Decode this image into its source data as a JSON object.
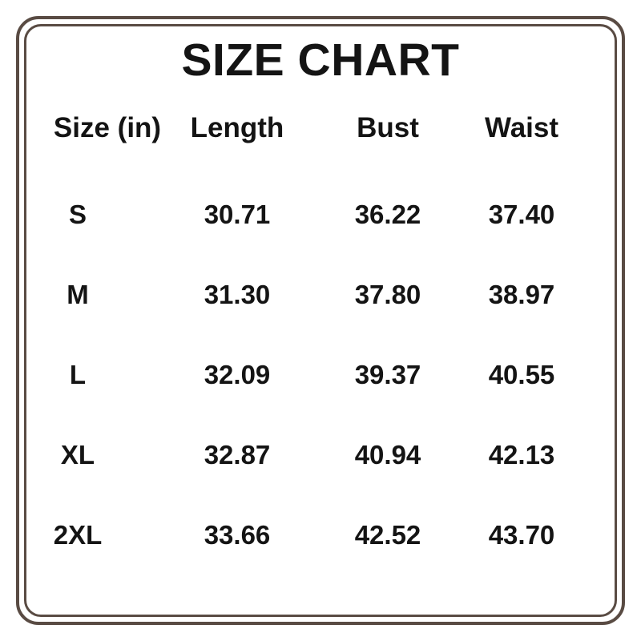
{
  "page": {
    "title": "SIZE CHART"
  },
  "colors": {
    "frame_brown": "#594b43",
    "text": "#141414",
    "background": "#ffffff"
  },
  "chart_data": {
    "type": "table",
    "title": "SIZE CHART",
    "columns": [
      "Size (in)",
      "Length",
      "Bust",
      "Waist"
    ],
    "rows": [
      {
        "size": "S",
        "length": "30.71",
        "bust": "36.22",
        "waist": "37.40"
      },
      {
        "size": "M",
        "length": "31.30",
        "bust": "37.80",
        "waist": "38.97"
      },
      {
        "size": "L",
        "length": "32.09",
        "bust": "39.37",
        "waist": "40.55"
      },
      {
        "size": "XL",
        "length": "32.87",
        "bust": "40.94",
        "waist": "42.13"
      },
      {
        "size": "2XL",
        "length": "33.66",
        "bust": "42.52",
        "waist": "43.70"
      }
    ]
  }
}
